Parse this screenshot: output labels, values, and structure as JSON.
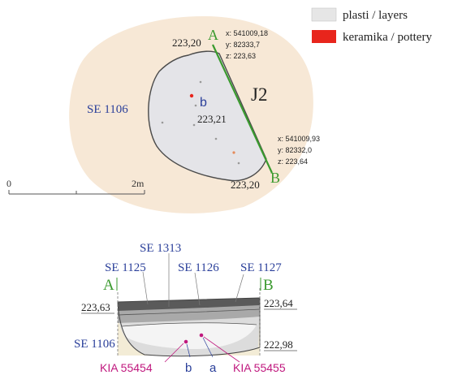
{
  "legend": {
    "items": [
      {
        "label": "plasti / layers",
        "color": "#e6e6e6"
      },
      {
        "label": "keramika / pottery",
        "color": "#e8251c"
      }
    ]
  },
  "plan": {
    "feature_label": "J2",
    "outer_unit_label": "SE 1106",
    "inner_label": "b",
    "center_elevation": "223,21",
    "point_a": {
      "letter": "A",
      "elevation": "223,20",
      "x": "x: 541009,18",
      "y": "y: 82333,7",
      "z": "z: 223,63"
    },
    "point_b": {
      "letter": "B",
      "elevation": "223,20",
      "x": "x: 541009,93",
      "y": "y: 82332,0",
      "z": "z: 223,64"
    },
    "scale": {
      "start": "0",
      "end": "2m"
    }
  },
  "section": {
    "labels": {
      "se1313": "SE 1313",
      "se1125": "SE 1125",
      "se1126": "SE 1126",
      "se1127": "SE 1127",
      "se1106": "SE 1106"
    },
    "left_letter": "A",
    "right_letter": "B",
    "elev_left": "223,63",
    "elev_right": "223,64",
    "elev_bottom": "222,98",
    "samples": {
      "kia_left": "KIA 55454",
      "kia_right": "KIA 55455",
      "b": "b",
      "a": "a"
    }
  },
  "colors": {
    "green": "#3a9a2e",
    "blue": "#2a3f9a",
    "magenta": "#c0187e",
    "halo": "#f7e8d6",
    "pit": "#e4e4e8",
    "pottery": "#e8251c"
  }
}
